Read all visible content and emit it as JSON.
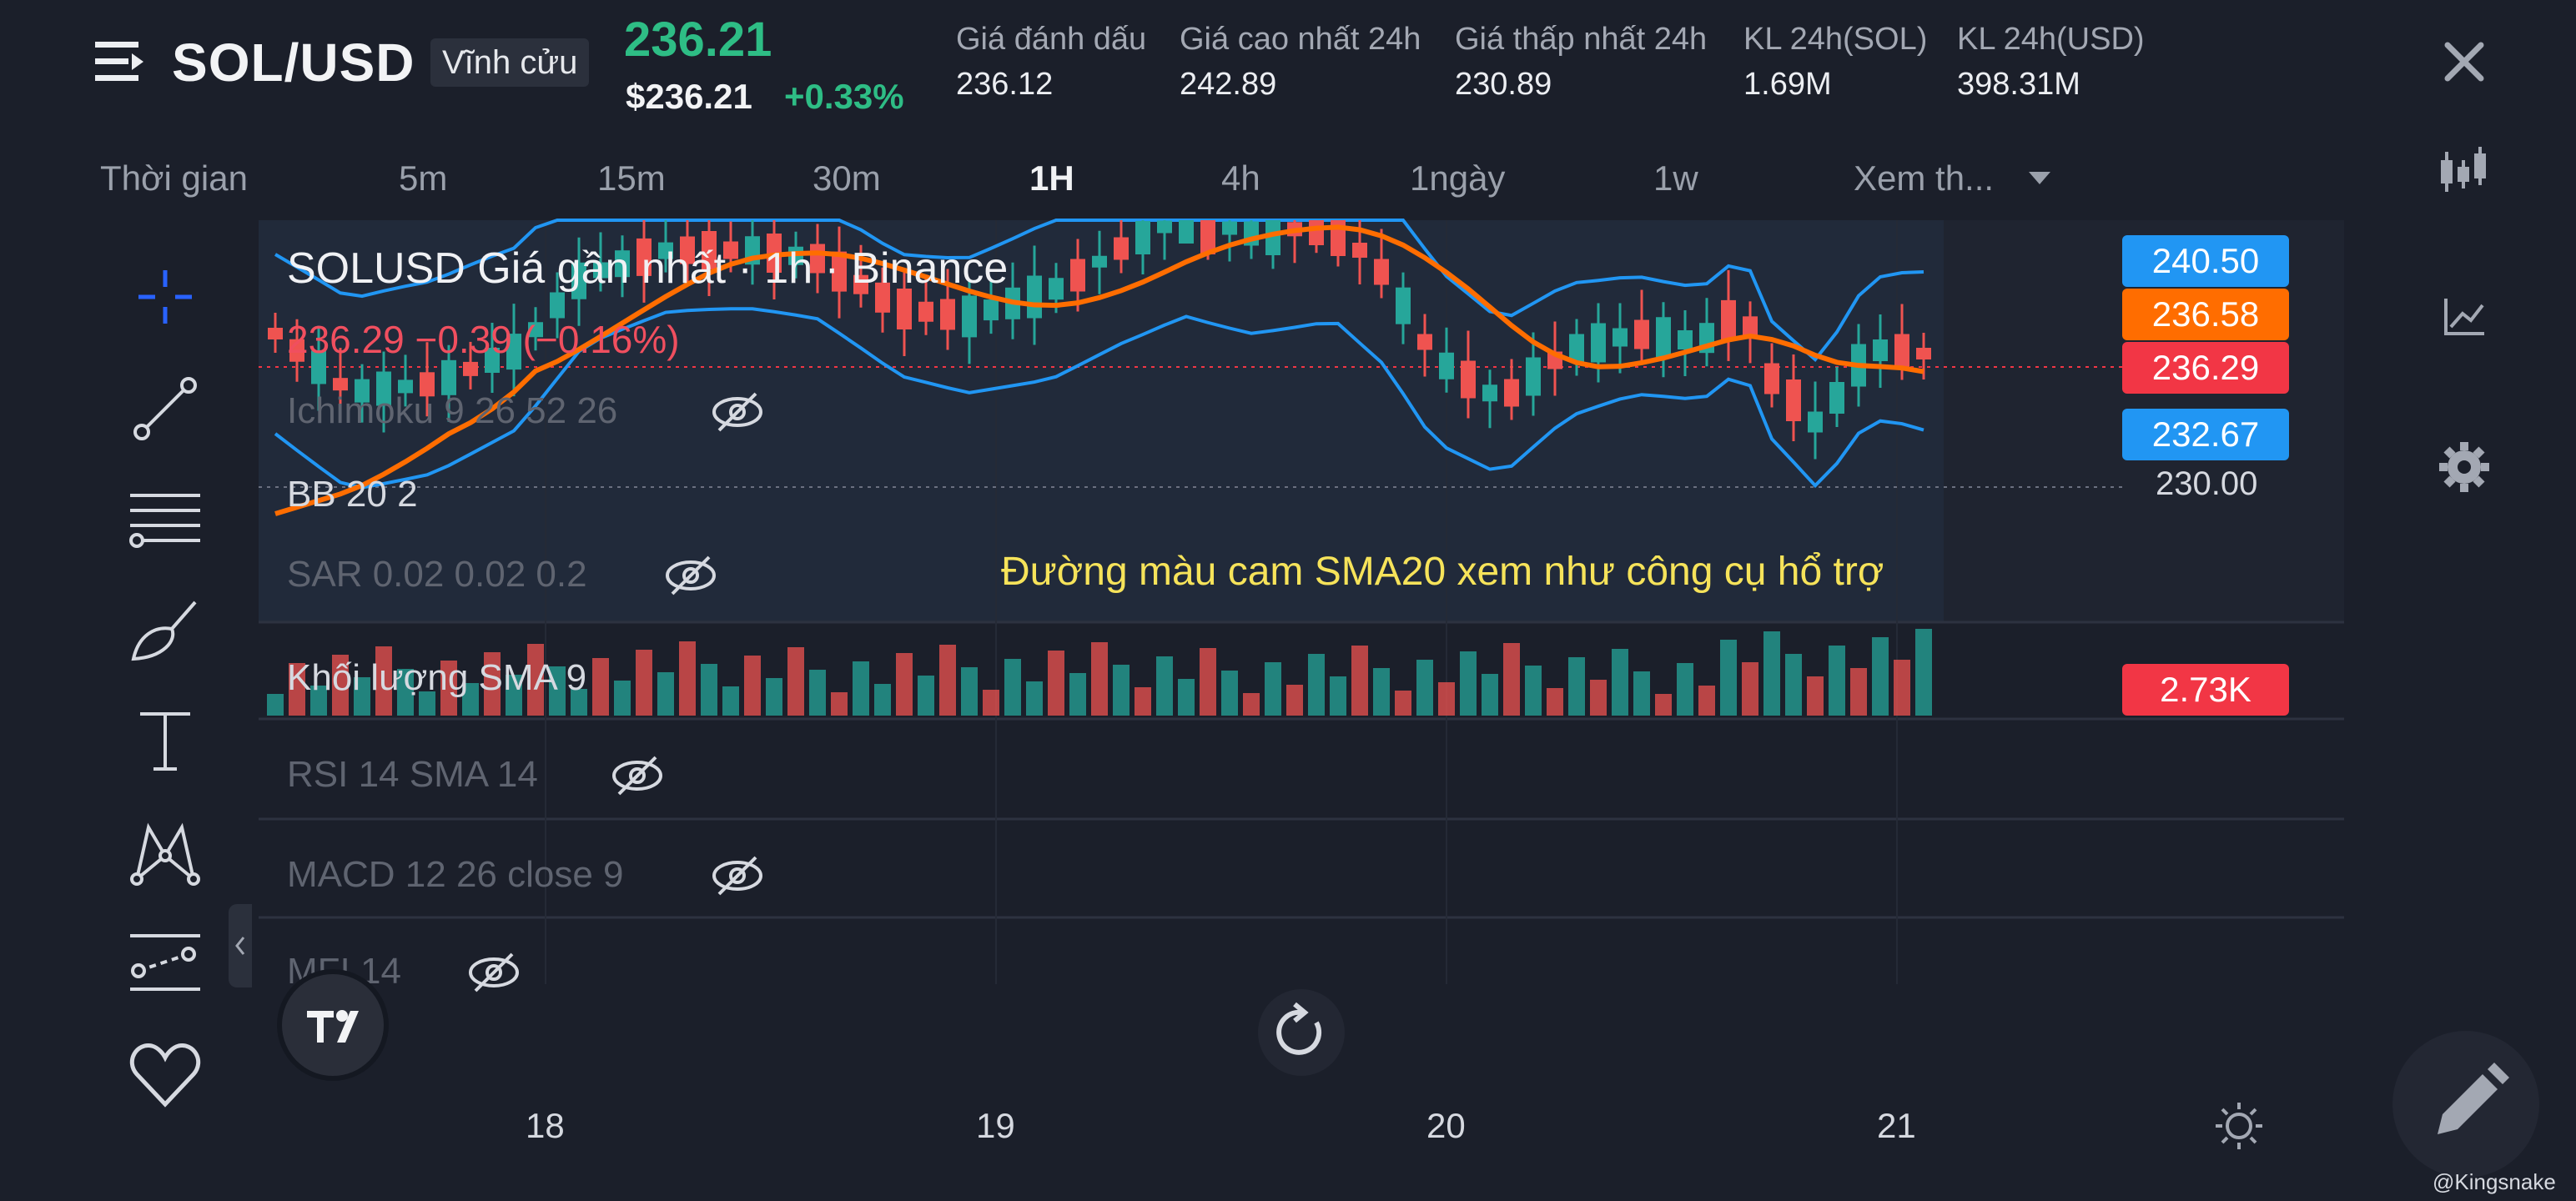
{
  "header": {
    "symbol": "SOL/USD",
    "contract_type": "Vĩnh cửu",
    "last_price": "236.21",
    "usd_price": "$236.21",
    "change_pct": "+0.33%",
    "stats": [
      {
        "label": "Giá đánh dấu",
        "value": "236.12"
      },
      {
        "label": "Giá cao nhất 24h",
        "value": "242.89"
      },
      {
        "label": "Giá thấp nhất 24h",
        "value": "230.89"
      },
      {
        "label": "KL 24h(SOL)",
        "value": "1.69M"
      },
      {
        "label": "KL 24h(USD)",
        "value": "398.31M"
      }
    ]
  },
  "timeframes": [
    {
      "label": "Thời gian",
      "active": false
    },
    {
      "label": "5m",
      "active": false
    },
    {
      "label": "15m",
      "active": false
    },
    {
      "label": "30m",
      "active": false
    },
    {
      "label": "1H",
      "active": true
    },
    {
      "label": "4h",
      "active": false
    },
    {
      "label": "1ngày",
      "active": false
    },
    {
      "label": "1w",
      "active": false
    },
    {
      "label": "Xem th...",
      "active": false
    }
  ],
  "chart": {
    "title": "SOLUSD Giá gần nhất · 1h · Binance",
    "ohlc_line": "236.29  −0.39 (−0.16%)",
    "annotation": "Đường màu cam SMA20 xem như công cụ hổ trợ",
    "indicators": [
      {
        "label": "Ichimoku 9 26 52 26",
        "hidden": true
      },
      {
        "label": "BB 20 2",
        "hidden": false
      },
      {
        "label": "SAR 0.02 0.02 0.2",
        "hidden": true
      },
      {
        "label": "Khối lượng SMA 9",
        "hidden": false
      },
      {
        "label": "RSI 14 SMA 14",
        "hidden": true
      },
      {
        "label": "MACD 12 26 close 9",
        "hidden": true
      },
      {
        "label": "MFI 14",
        "hidden": true
      }
    ],
    "price_tags": [
      {
        "value": "240.50",
        "color": "#2196f3"
      },
      {
        "value": "236.58",
        "color": "#ff6d00"
      },
      {
        "value": "236.29",
        "color": "#f23645"
      },
      {
        "value": "232.67",
        "color": "#2196f3"
      }
    ],
    "price_level": "230.00",
    "volume_tag": "2.73K",
    "dates": [
      "18",
      "19",
      "20",
      "21"
    ]
  },
  "watermark": "@Kingsnake",
  "colors": {
    "up": "#26a69a",
    "down": "#ef5350",
    "sma": "#ff6d00",
    "bb": "#2196f3"
  },
  "icons": [
    "menu-icon",
    "close-icon",
    "crosshair-icon",
    "trendline-icon",
    "fib-icon",
    "brush-icon",
    "text-icon",
    "pattern-icon",
    "forecast-icon",
    "heart-icon",
    "candles-icon",
    "compare-icon",
    "gear-icon",
    "reset-icon",
    "sun-icon",
    "pencil-icon"
  ]
}
